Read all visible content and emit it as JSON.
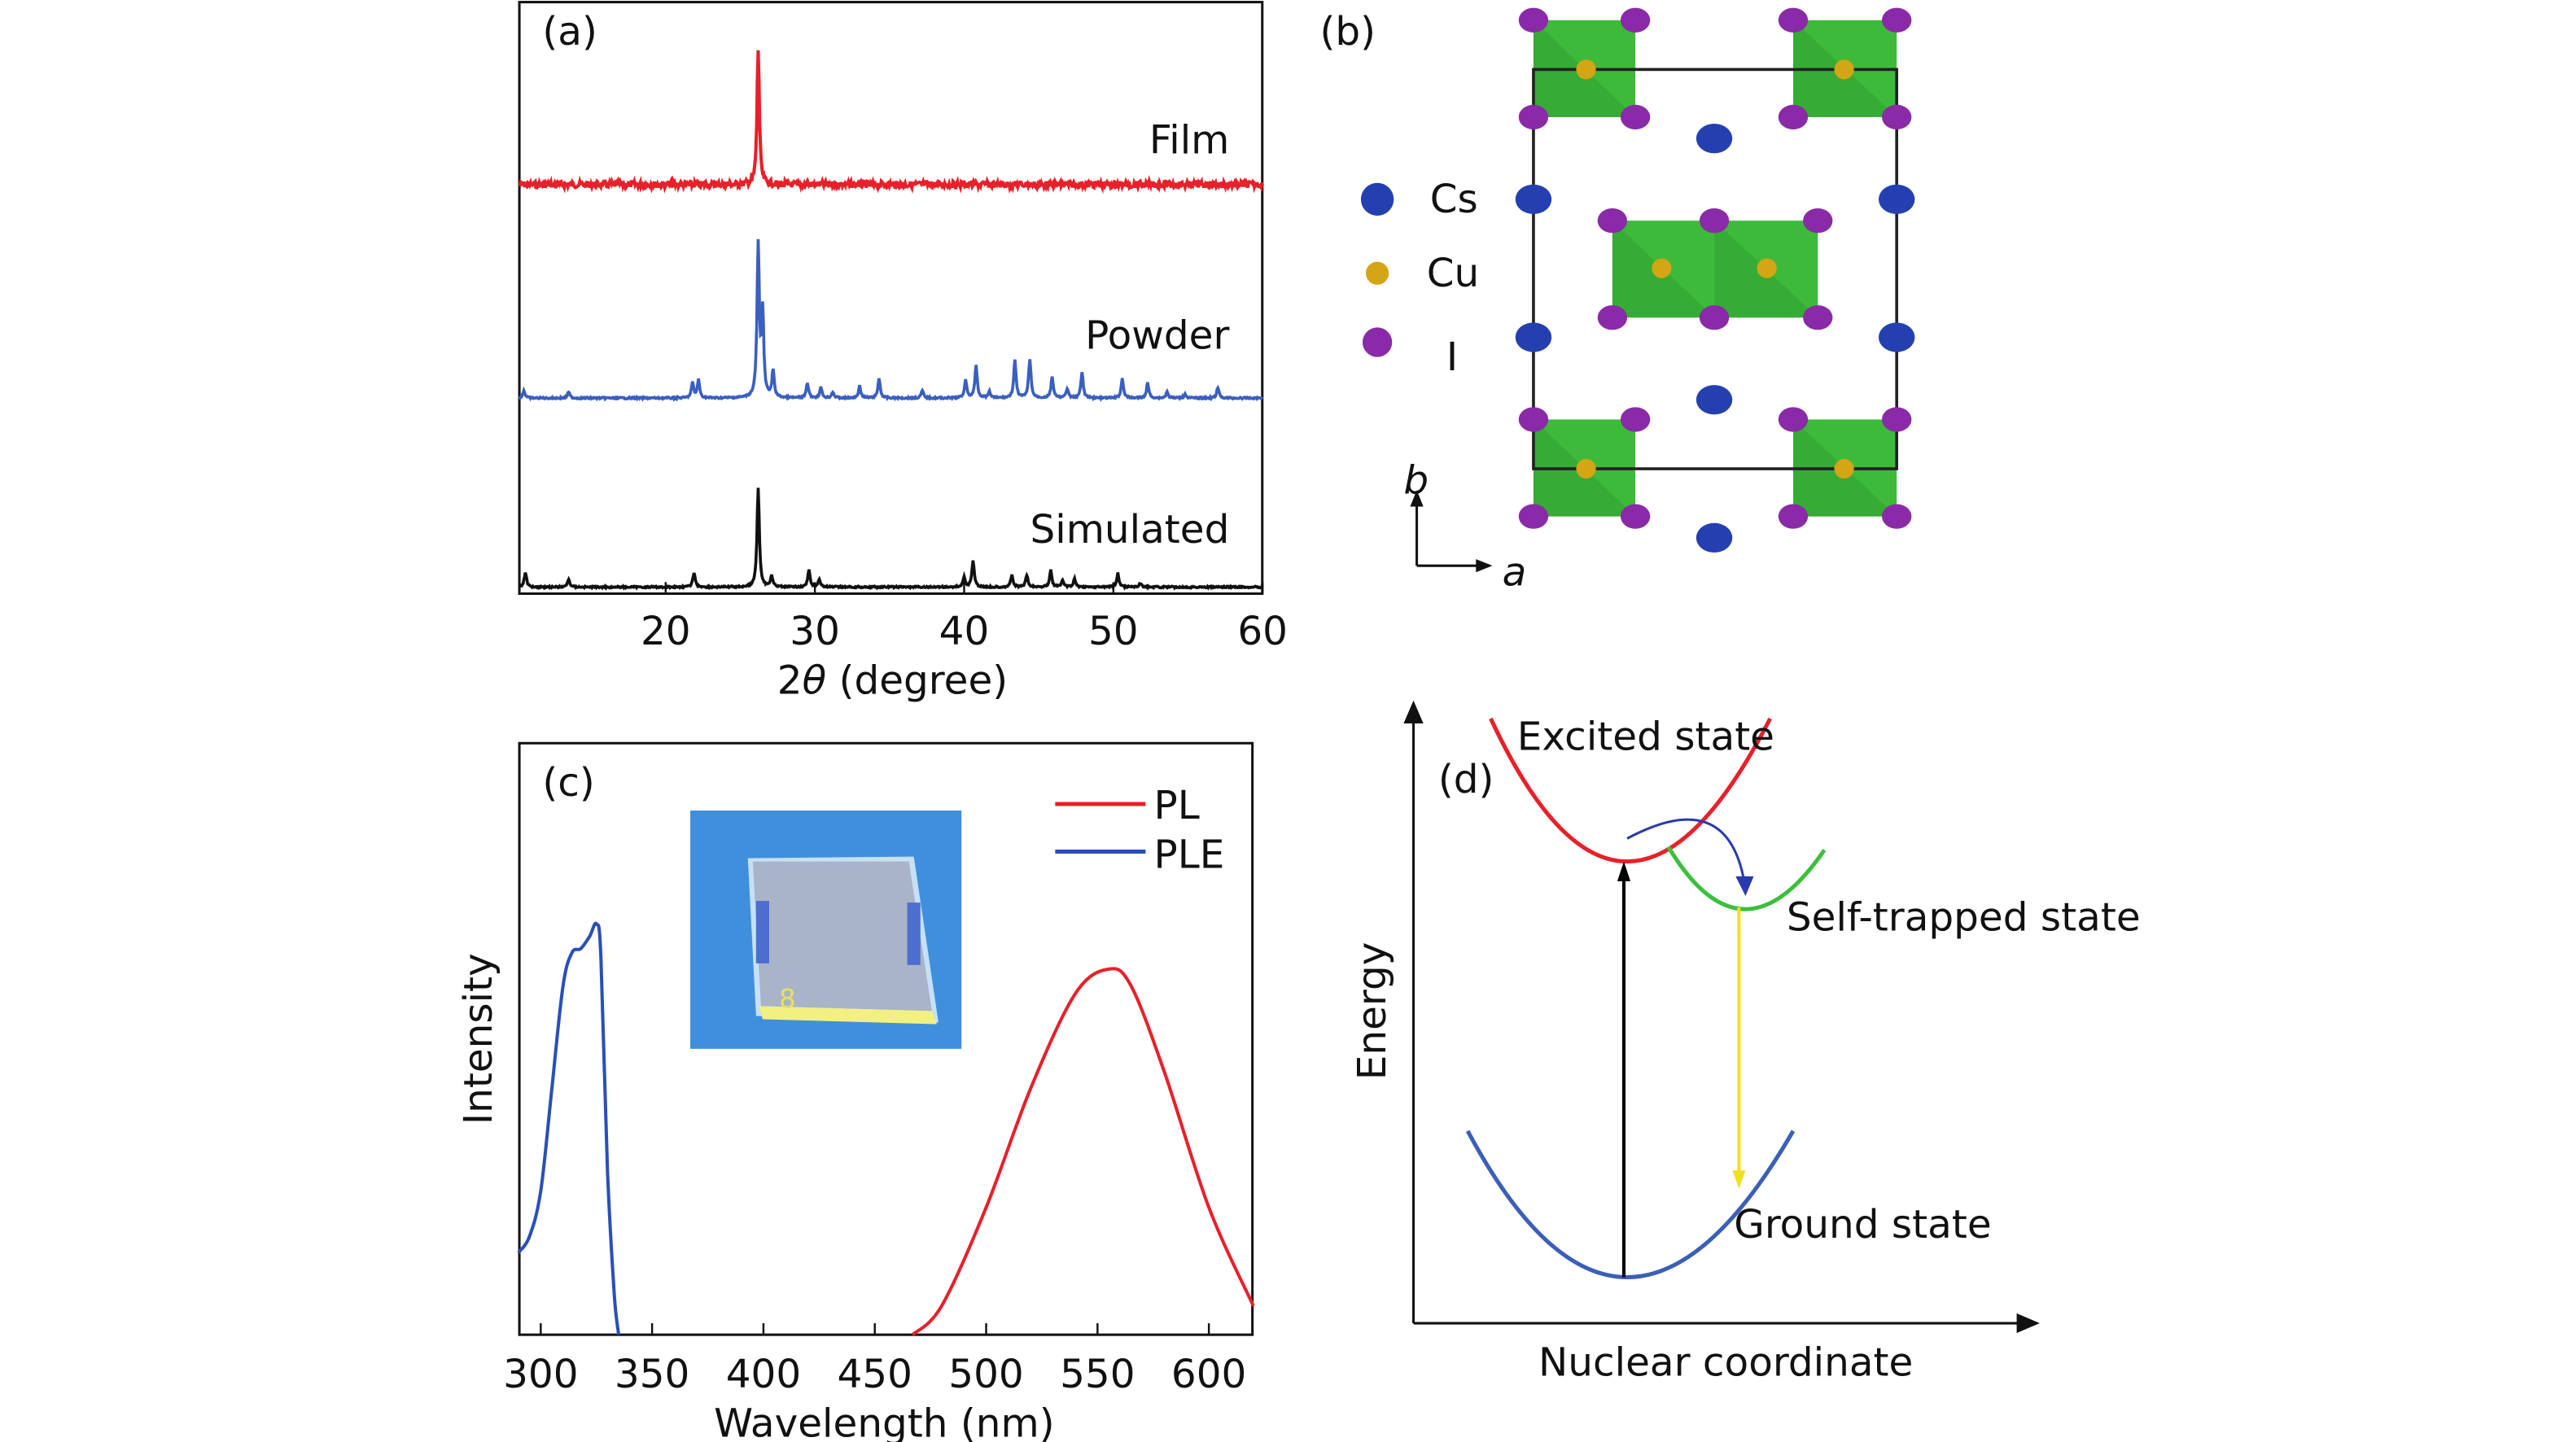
{
  "panels": {
    "a": {
      "label": "(a)",
      "xlabel_prefix": "2",
      "xlabel_theta": "θ",
      "xlabel_suffix": " (degree)"
    },
    "b": {
      "label": "(b)",
      "legend": [
        {
          "name": "Cs",
          "color": "#2440b0"
        },
        {
          "name": "Cu",
          "color": "#d4a514"
        },
        {
          "name": "I",
          "color": "#8a2aa8"
        }
      ],
      "axis_a": "a",
      "axis_b": "b",
      "octahedra_color": "#3dba3a"
    },
    "c": {
      "label": "(c)",
      "ylabel": "Intensity",
      "xlabel": "Wavelength (nm)"
    },
    "d": {
      "label": "(d)",
      "ylabel": "Energy",
      "xlabel": "Nuclear coordinate",
      "excited": "Excited state",
      "self_trapped": "Self-trapped state",
      "ground": "Ground state",
      "colors": {
        "excited": "#e8202a",
        "self_trapped": "#3cbf3c",
        "ground": "#3a5fb8",
        "emission": "#f0e020",
        "excitation": "#000000",
        "relaxation": "#2a3ab0"
      }
    }
  },
  "chart_data": [
    {
      "type": "line",
      "panel": "a",
      "xlabel": "2θ (degree)",
      "xlim": [
        10,
        60
      ],
      "xticks": [
        20,
        30,
        40,
        50,
        60
      ],
      "ylabel": "",
      "grid": false,
      "series": [
        {
          "name": "Film",
          "color": "#e8202a",
          "peaks": [
            [
              26.2,
              1.0
            ]
          ]
        },
        {
          "name": "Powder",
          "color": "#3a5fc0",
          "peaks": [
            [
              10.5,
              0.05
            ],
            [
              13.5,
              0.04
            ],
            [
              21.8,
              0.1
            ],
            [
              22.2,
              0.12
            ],
            [
              26.2,
              1.0
            ],
            [
              26.5,
              0.55
            ],
            [
              27.2,
              0.18
            ],
            [
              29.5,
              0.1
            ],
            [
              30.4,
              0.07
            ],
            [
              31.2,
              0.04
            ],
            [
              33.0,
              0.08
            ],
            [
              34.3,
              0.13
            ],
            [
              37.2,
              0.05
            ],
            [
              40.1,
              0.12
            ],
            [
              40.8,
              0.22
            ],
            [
              41.7,
              0.04
            ],
            [
              43.4,
              0.25
            ],
            [
              44.4,
              0.26
            ],
            [
              45.9,
              0.14
            ],
            [
              46.9,
              0.06
            ],
            [
              47.9,
              0.17
            ],
            [
              50.6,
              0.13
            ],
            [
              52.3,
              0.1
            ],
            [
              53.6,
              0.04
            ],
            [
              54.8,
              0.03
            ],
            [
              57.0,
              0.07
            ]
          ]
        },
        {
          "name": "Simulated",
          "color": "#111111",
          "peaks": [
            [
              10.6,
              0.15
            ],
            [
              13.5,
              0.08
            ],
            [
              21.9,
              0.15
            ],
            [
              26.2,
              1.0
            ],
            [
              27.1,
              0.12
            ],
            [
              29.6,
              0.17
            ],
            [
              30.3,
              0.08
            ],
            [
              40.0,
              0.1
            ],
            [
              40.6,
              0.27
            ],
            [
              43.2,
              0.12
            ],
            [
              44.2,
              0.12
            ],
            [
              45.8,
              0.17
            ],
            [
              46.6,
              0.07
            ],
            [
              47.4,
              0.08
            ],
            [
              50.3,
              0.14
            ],
            [
              51.8,
              0.04
            ]
          ]
        }
      ]
    },
    {
      "type": "line",
      "panel": "c",
      "xlabel": "Wavelength (nm)",
      "ylabel": "Intensity",
      "xlim": [
        290,
        620
      ],
      "ylim": [
        0,
        1
      ],
      "xticks": [
        300,
        350,
        400,
        450,
        500,
        550,
        600
      ],
      "legend": "top-right",
      "grid": false,
      "series": [
        {
          "name": "PL",
          "color": "#e8202a",
          "x": [
            467,
            480,
            500,
            520,
            540,
            555,
            565,
            580,
            600,
            620
          ],
          "y": [
            0,
            0.07,
            0.31,
            0.6,
            0.83,
            0.89,
            0.85,
            0.64,
            0.31,
            0.07
          ]
        },
        {
          "name": "PLE",
          "color": "#2a4fb8",
          "x": [
            290,
            295,
            300,
            305,
            310,
            314,
            318,
            322,
            325,
            327,
            330,
            333,
            335
          ],
          "y": [
            0.2,
            0.24,
            0.35,
            0.6,
            0.85,
            0.93,
            0.94,
            0.97,
            1.0,
            0.92,
            0.4,
            0.1,
            0
          ]
        }
      ]
    }
  ]
}
